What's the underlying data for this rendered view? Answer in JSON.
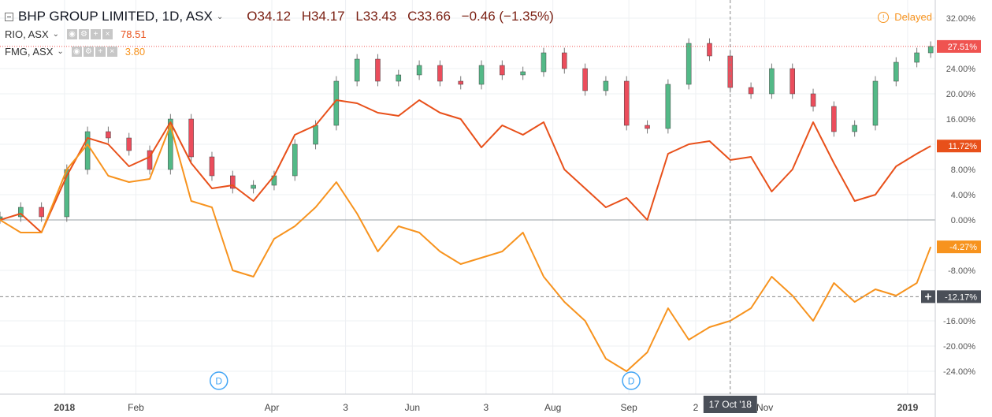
{
  "header": {
    "main_symbol": "BHP GROUP LIMITED, 1D, ASX",
    "ohlc": {
      "open": "O34.12",
      "high": "H34.17",
      "low": "L33.43",
      "close": "C33.66",
      "change": "−0.46 (−1.35%)"
    },
    "compare": [
      {
        "symbol": "RIO, ASX",
        "value": "78.51",
        "color": "#e8501a"
      },
      {
        "symbol": "FMG, ASX",
        "value": "3.80",
        "color": "#f7931e"
      }
    ],
    "status": "Delayed"
  },
  "chart_data": {
    "type": "line",
    "y_unit": "percent change",
    "ylim": [
      -27,
      32.5
    ],
    "y_ticks": [
      "32.00%",
      "24.00%",
      "20.00%",
      "16.00%",
      "12.00%",
      "8.00%",
      "4.00%",
      "0.00%",
      "-8.00%",
      "-16.00%",
      "-20.00%",
      "-24.00%"
    ],
    "y_tick_values": [
      32,
      24,
      20,
      16,
      12,
      8,
      4,
      0,
      -8,
      -16,
      -20,
      -24
    ],
    "x_ticks": [
      "2018",
      "Feb",
      "Apr",
      "3",
      "Jun",
      "3",
      "Aug",
      "Sep",
      "2",
      "Nov",
      "2019"
    ],
    "x_tick_dates": [
      "2018-01-01",
      "2018-02-01",
      "2018-04-01",
      "2018-05-03",
      "2018-06-01",
      "2018-07-03",
      "2018-08-01",
      "2018-09-03",
      "2018-10-02",
      "2018-11-01",
      "2019-01-02"
    ],
    "x_range": [
      "2017-12-04",
      "2019-01-14"
    ],
    "crosshair": {
      "date_label": "17 Oct '18",
      "date": "2018-10-17",
      "value_label": "-12.17%",
      "value": -12.17
    },
    "last_labels": [
      {
        "text": "27.51%",
        "value": 27.51,
        "color": "#ef5350"
      },
      {
        "text": "11.72%",
        "value": 11.72,
        "color": "#e8501a"
      },
      {
        "text": "-4.27%",
        "value": -4.27,
        "color": "#f7931e"
      }
    ],
    "events": [
      {
        "label": "D",
        "date": "2018-03-09"
      },
      {
        "label": "D",
        "date": "2018-09-04"
      }
    ],
    "series": [
      {
        "name": "BHP GROUP LIMITED",
        "style": "candles",
        "color_up": "#53b987",
        "color_down": "#eb4d5c",
        "x": [
          "2017-12-04",
          "2017-12-13",
          "2017-12-22",
          "2018-01-02",
          "2018-01-11",
          "2018-01-20",
          "2018-01-29",
          "2018-02-07",
          "2018-02-16",
          "2018-02-25",
          "2018-03-06",
          "2018-03-15",
          "2018-03-24",
          "2018-04-02",
          "2018-04-11",
          "2018-04-20",
          "2018-04-29",
          "2018-05-08",
          "2018-05-17",
          "2018-05-26",
          "2018-06-04",
          "2018-06-13",
          "2018-06-22",
          "2018-07-01",
          "2018-07-10",
          "2018-07-19",
          "2018-07-28",
          "2018-08-06",
          "2018-08-15",
          "2018-08-24",
          "2018-09-02",
          "2018-09-11",
          "2018-09-20",
          "2018-09-29",
          "2018-10-08",
          "2018-10-17",
          "2018-10-26",
          "2018-11-04",
          "2018-11-13",
          "2018-11-22",
          "2018-12-01",
          "2018-12-10",
          "2018-12-19",
          "2018-12-28",
          "2019-01-06",
          "2019-01-12"
        ],
        "values": [
          0.5,
          2.0,
          0.5,
          8.0,
          14.0,
          13.0,
          11.0,
          8.0,
          16.0,
          10.0,
          7.0,
          5.0,
          5.5,
          7.0,
          12.0,
          15.0,
          22.0,
          25.5,
          22.0,
          23.0,
          24.5,
          22.0,
          21.5,
          24.5,
          23.0,
          23.5,
          26.5,
          24.0,
          20.5,
          22.0,
          15.0,
          14.5,
          21.5,
          28.0,
          26.0,
          21.0,
          20.0,
          24.0,
          20.0,
          18.0,
          14.0,
          15.0,
          22.0,
          25.0,
          26.5,
          27.51
        ]
      },
      {
        "name": "RIO, ASX",
        "style": "line",
        "color": "#e8501a",
        "x": [
          "2017-12-04",
          "2017-12-13",
          "2017-12-22",
          "2018-01-02",
          "2018-01-11",
          "2018-01-20",
          "2018-01-29",
          "2018-02-07",
          "2018-02-16",
          "2018-02-25",
          "2018-03-06",
          "2018-03-15",
          "2018-03-24",
          "2018-04-02",
          "2018-04-11",
          "2018-04-20",
          "2018-04-29",
          "2018-05-08",
          "2018-05-17",
          "2018-05-26",
          "2018-06-04",
          "2018-06-13",
          "2018-06-22",
          "2018-07-01",
          "2018-07-10",
          "2018-07-19",
          "2018-07-28",
          "2018-08-06",
          "2018-08-15",
          "2018-08-24",
          "2018-09-02",
          "2018-09-11",
          "2018-09-20",
          "2018-09-29",
          "2018-10-08",
          "2018-10-17",
          "2018-10-26",
          "2018-11-04",
          "2018-11-13",
          "2018-11-22",
          "2018-12-01",
          "2018-12-10",
          "2018-12-19",
          "2018-12-28",
          "2019-01-06",
          "2019-01-12"
        ],
        "values": [
          0.0,
          1.0,
          -2.0,
          7.0,
          13.0,
          12.0,
          8.5,
          10.0,
          15.5,
          9.0,
          5.0,
          5.5,
          3.0,
          7.0,
          13.5,
          15.0,
          19.0,
          18.5,
          17.0,
          16.5,
          19.0,
          17.0,
          16.0,
          11.5,
          15.0,
          13.5,
          15.5,
          8.0,
          5.0,
          2.0,
          3.5,
          0.0,
          10.5,
          12.0,
          12.5,
          9.5,
          10.0,
          4.5,
          8.0,
          15.5,
          9.0,
          3.0,
          4.0,
          8.5,
          10.5,
          11.72
        ]
      },
      {
        "name": "FMG, ASX",
        "style": "line",
        "color": "#f7931e",
        "x": [
          "2017-12-04",
          "2017-12-13",
          "2017-12-22",
          "2018-01-02",
          "2018-01-11",
          "2018-01-20",
          "2018-01-29",
          "2018-02-07",
          "2018-02-16",
          "2018-02-25",
          "2018-03-06",
          "2018-03-15",
          "2018-03-24",
          "2018-04-02",
          "2018-04-11",
          "2018-04-20",
          "2018-04-29",
          "2018-05-08",
          "2018-05-17",
          "2018-05-26",
          "2018-06-04",
          "2018-06-13",
          "2018-06-22",
          "2018-07-01",
          "2018-07-10",
          "2018-07-19",
          "2018-07-28",
          "2018-08-06",
          "2018-08-15",
          "2018-08-24",
          "2018-09-02",
          "2018-09-11",
          "2018-09-20",
          "2018-09-29",
          "2018-10-08",
          "2018-10-17",
          "2018-10-26",
          "2018-11-04",
          "2018-11-13",
          "2018-11-22",
          "2018-12-01",
          "2018-12-10",
          "2018-12-19",
          "2018-12-28",
          "2019-01-06",
          "2019-01-12"
        ],
        "values": [
          0.0,
          -2.0,
          -2.0,
          8.0,
          12.0,
          7.0,
          6.0,
          6.5,
          15.0,
          3.0,
          2.0,
          -8.0,
          -9.0,
          -3.0,
          -1.0,
          2.0,
          6.0,
          1.0,
          -5.0,
          -1.0,
          -2.0,
          -5.0,
          -7.0,
          -6.0,
          -5.0,
          -2.0,
          -9.0,
          -13.0,
          -16.0,
          -22.0,
          -24.0,
          -21.0,
          -14.0,
          -19.0,
          -17.0,
          -16.0,
          -14.0,
          -9.0,
          -12.0,
          -16.0,
          -10.0,
          -13.0,
          -11.0,
          -12.0,
          -10.0,
          -4.27
        ]
      }
    ]
  }
}
